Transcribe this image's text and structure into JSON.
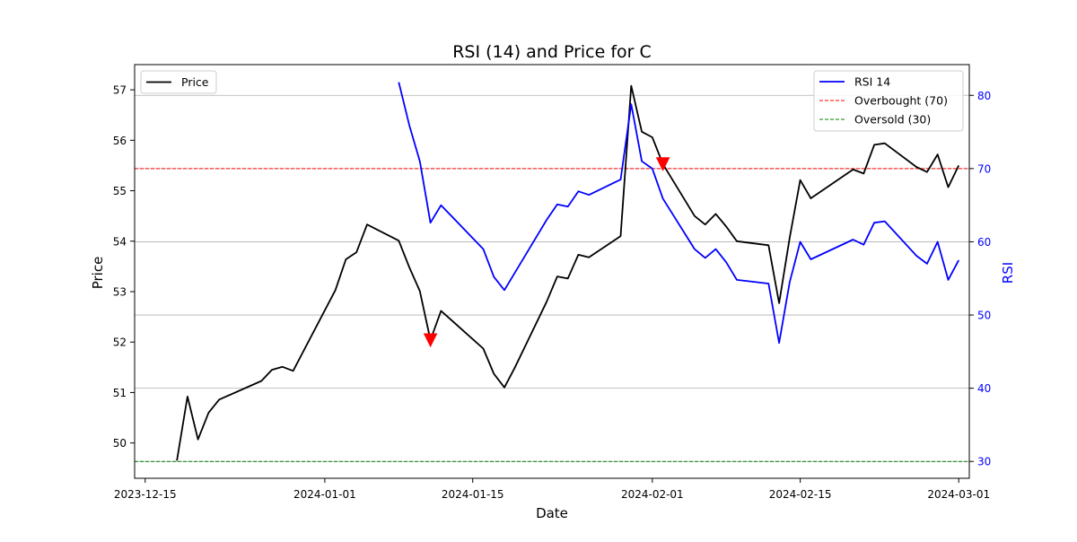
{
  "chart_data": {
    "type": "line",
    "title": "RSI (14) and Price for C",
    "xlabel": "Date",
    "ylabel": "Price",
    "y2label": "RSI",
    "xlim": [
      "2023-12-14",
      "2024-03-02"
    ],
    "ylim": [
      49.3,
      57.5
    ],
    "y2lim": [
      27.7,
      84.2
    ],
    "x_ticks": [
      "2023-12-15",
      "2024-01-01",
      "2024-01-15",
      "2024-02-01",
      "2024-02-15",
      "2024-03-01"
    ],
    "y_ticks": [
      50,
      51,
      52,
      53,
      54,
      55,
      56,
      57
    ],
    "y2_ticks": [
      30,
      40,
      50,
      60,
      70,
      80
    ],
    "grid": "horizontal, right axis",
    "series": [
      {
        "name": "Price",
        "axis": "left",
        "color": "#000000",
        "points": [
          [
            "2023-12-18",
            49.65
          ],
          [
            "2023-12-19",
            50.92
          ],
          [
            "2023-12-20",
            50.07
          ],
          [
            "2023-12-21",
            50.6
          ],
          [
            "2023-12-22",
            50.86
          ],
          [
            "2023-12-26",
            51.23
          ],
          [
            "2023-12-27",
            51.45
          ],
          [
            "2023-12-28",
            51.51
          ],
          [
            "2023-12-29",
            51.43
          ],
          [
            "2024-01-02",
            53.03
          ],
          [
            "2024-01-03",
            53.64
          ],
          [
            "2024-01-04",
            53.78
          ],
          [
            "2024-01-05",
            54.33
          ],
          [
            "2024-01-08",
            54.01
          ],
          [
            "2024-01-09",
            53.48
          ],
          [
            "2024-01-10",
            53.01
          ],
          [
            "2024-01-11",
            52.04
          ],
          [
            "2024-01-12",
            52.62
          ],
          [
            "2024-01-16",
            51.87
          ],
          [
            "2024-01-17",
            51.37
          ],
          [
            "2024-01-18",
            51.1
          ],
          [
            "2024-01-19",
            51.5
          ],
          [
            "2024-01-22",
            52.8
          ],
          [
            "2024-01-23",
            53.3
          ],
          [
            "2024-01-24",
            53.26
          ],
          [
            "2024-01-25",
            53.73
          ],
          [
            "2024-01-26",
            53.68
          ],
          [
            "2024-01-29",
            54.1
          ],
          [
            "2024-01-30",
            57.08
          ],
          [
            "2024-01-31",
            56.17
          ],
          [
            "2024-02-01",
            56.06
          ],
          [
            "2024-02-02",
            55.53
          ],
          [
            "2024-02-05",
            54.5
          ],
          [
            "2024-02-06",
            54.33
          ],
          [
            "2024-02-07",
            54.54
          ],
          [
            "2024-02-08",
            54.29
          ],
          [
            "2024-02-09",
            54.0
          ],
          [
            "2024-02-12",
            53.92
          ],
          [
            "2024-02-13",
            52.77
          ],
          [
            "2024-02-14",
            54.07
          ],
          [
            "2024-02-15",
            55.21
          ],
          [
            "2024-02-16",
            54.85
          ],
          [
            "2024-02-20",
            55.42
          ],
          [
            "2024-02-21",
            55.34
          ],
          [
            "2024-02-22",
            55.91
          ],
          [
            "2024-02-23",
            55.94
          ],
          [
            "2024-02-26",
            55.47
          ],
          [
            "2024-02-27",
            55.37
          ],
          [
            "2024-02-28",
            55.72
          ],
          [
            "2024-02-29",
            55.07
          ],
          [
            "2024-03-01",
            55.5
          ]
        ]
      },
      {
        "name": "RSI 14",
        "axis": "right",
        "color": "#0000ff",
        "points": [
          [
            "2024-01-08",
            81.8
          ],
          [
            "2024-01-09",
            75.9
          ],
          [
            "2024-01-10",
            71.0
          ],
          [
            "2024-01-11",
            62.6
          ],
          [
            "2024-01-12",
            65.0
          ],
          [
            "2024-01-16",
            59.0
          ],
          [
            "2024-01-17",
            55.2
          ],
          [
            "2024-01-18",
            53.4
          ],
          [
            "2024-01-19",
            55.8
          ],
          [
            "2024-01-22",
            63.0
          ],
          [
            "2024-01-23",
            65.1
          ],
          [
            "2024-01-24",
            64.8
          ],
          [
            "2024-01-25",
            66.9
          ],
          [
            "2024-01-26",
            66.4
          ],
          [
            "2024-01-29",
            68.5
          ],
          [
            "2024-01-30",
            78.8
          ],
          [
            "2024-01-31",
            71.0
          ],
          [
            "2024-02-01",
            70.0
          ],
          [
            "2024-02-02",
            65.9
          ],
          [
            "2024-02-05",
            59.0
          ],
          [
            "2024-02-06",
            57.8
          ],
          [
            "2024-02-07",
            59.0
          ],
          [
            "2024-02-08",
            57.2
          ],
          [
            "2024-02-09",
            54.8
          ],
          [
            "2024-02-12",
            54.3
          ],
          [
            "2024-02-13",
            46.2
          ],
          [
            "2024-02-14",
            54.5
          ],
          [
            "2024-02-15",
            60.0
          ],
          [
            "2024-02-16",
            57.6
          ],
          [
            "2024-02-20",
            60.3
          ],
          [
            "2024-02-21",
            59.6
          ],
          [
            "2024-02-22",
            62.6
          ],
          [
            "2024-02-23",
            62.8
          ],
          [
            "2024-02-26",
            58.1
          ],
          [
            "2024-02-27",
            57.0
          ],
          [
            "2024-02-28",
            60.0
          ],
          [
            "2024-02-29",
            54.8
          ],
          [
            "2024-03-01",
            57.5
          ]
        ]
      }
    ],
    "reference_lines": [
      {
        "name": "Overbought (70)",
        "axis": "right",
        "value": 70,
        "color": "#ff0000",
        "style": "dashed"
      },
      {
        "name": "Oversold (30)",
        "axis": "right",
        "value": 30,
        "color": "#008000",
        "style": "dashed"
      }
    ],
    "markers": [
      {
        "date": "2024-01-11",
        "axis": "left",
        "value": 52.04,
        "shape": "triangle-down",
        "color": "#ff0000"
      },
      {
        "date": "2024-02-02",
        "axis": "left",
        "value": 55.53,
        "shape": "triangle-down",
        "color": "#ff0000"
      }
    ],
    "legends": [
      {
        "placement": "top-left",
        "entries": [
          "Price"
        ]
      },
      {
        "placement": "top-right",
        "entries": [
          "RSI 14",
          "Overbought (70)",
          "Oversold (30)"
        ]
      }
    ]
  }
}
